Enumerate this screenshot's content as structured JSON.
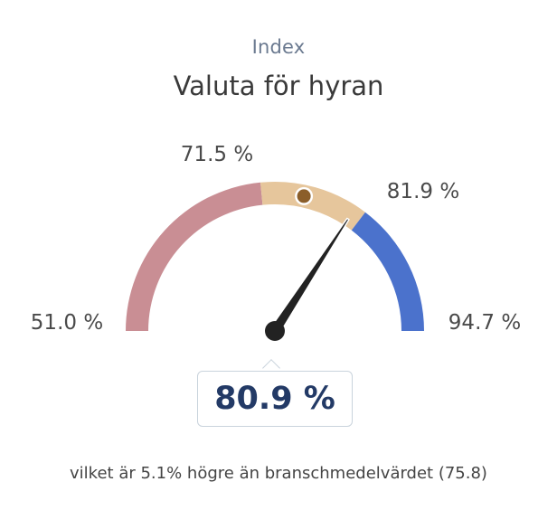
{
  "header": {
    "subtitle": "Index",
    "title": "Valuta för hyran"
  },
  "chart_data": {
    "type": "gauge",
    "min": 51.0,
    "max": 94.7,
    "segments": [
      {
        "from": 51.0,
        "to": 71.5,
        "color": "#c98e94"
      },
      {
        "from": 71.5,
        "to": 81.9,
        "color": "#e6c69c"
      },
      {
        "from": 81.9,
        "to": 94.7,
        "color": "#4b72cc"
      }
    ],
    "tick_labels": [
      "51.0 %",
      "71.5 %",
      "81.9 %",
      "94.7 %"
    ],
    "ticks": [
      51.0,
      71.5,
      81.9,
      94.7
    ],
    "value": 80.9,
    "value_label": "80.9 %",
    "benchmark": 75.8,
    "marker_color": "#8b5e2a",
    "needle_color": "#222222"
  },
  "note": "vilket är 5.1% högre än branschmedelvärdet (75.8)"
}
